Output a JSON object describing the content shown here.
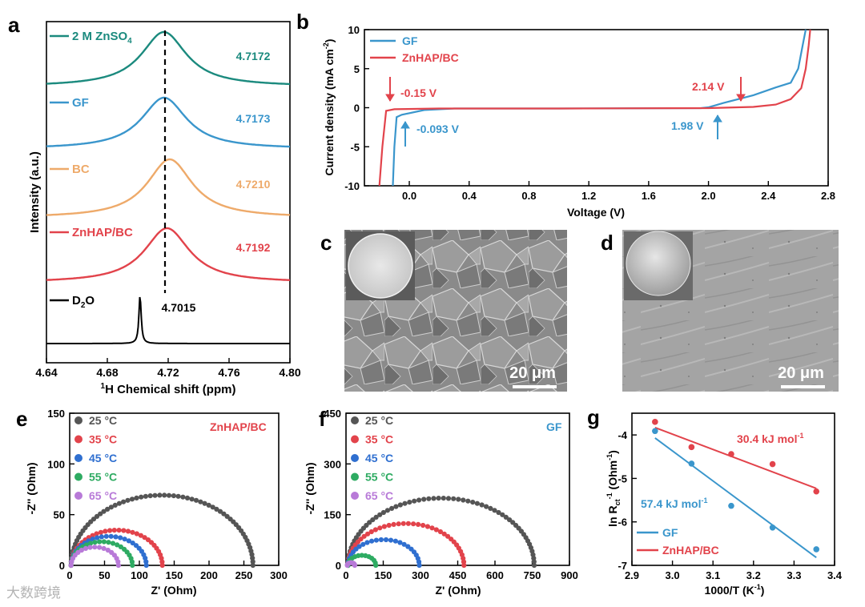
{
  "colors": {
    "black": "#000000",
    "teal": "#1b8a7e",
    "blue": "#3a96cc",
    "orange": "#eeaa6a",
    "red": "#e2434b",
    "gray": "#555555",
    "green": "#2eab62",
    "purple": "#b87ad8",
    "dblue": "#2f6fd0"
  },
  "panels": {
    "a": {
      "letter": "a",
      "ylabel": "Intensity (a.u.)",
      "xlabel_pre": "1",
      "xlabel": "H Chemical shift (ppm)",
      "xticks": [
        "4.64",
        "4.68",
        "4.72",
        "4.76",
        "4.80"
      ],
      "xrange": [
        4.64,
        4.8
      ],
      "peak_labels": [
        "4.7172",
        "4.7173",
        "4.7210",
        "4.7192"
      ],
      "d2o_peak": "4.7015",
      "legend": [
        {
          "label": "2 M ZnSO",
          "sub": "4"
        },
        {
          "label": "GF"
        },
        {
          "label": "BC"
        },
        {
          "label": "ZnHAP/BC"
        },
        {
          "label": "D",
          "sub": "2",
          "tail": "O"
        }
      ],
      "peaks": [
        4.7172,
        4.7173,
        4.721,
        4.7192,
        4.7015
      ]
    },
    "b": {
      "letter": "b",
      "ylabel": "Current density (mA cm",
      "ylabel_sup": "-2",
      "ylabel_end": ")",
      "xlabel": "Voltage (V)",
      "xticks": [
        "0.0",
        "0.4",
        "0.8",
        "1.2",
        "1.6",
        "2.0",
        "2.4",
        "2.8"
      ],
      "yticks": [
        "10",
        "5",
        "0",
        "-5",
        "-10"
      ],
      "xrange": [
        -0.3,
        2.8
      ],
      "yrange": [
        -10,
        10
      ],
      "legend": [
        "GF",
        "ZnHAP/BC"
      ],
      "annotations": {
        "red_low": "-0.15 V",
        "blue_low": "-0.093 V",
        "red_high": "2.14 V",
        "blue_high": "1.98 V"
      }
    },
    "c": {
      "letter": "c",
      "scale": "20 μm"
    },
    "d": {
      "letter": "d",
      "scale": "20 μm"
    },
    "e": {
      "letter": "e",
      "label": "ZnHAP/BC",
      "xlabel": "Z' (Ohm)",
      "ylabel": "-Z'' (Ohm)",
      "xticks": [
        "0",
        "50",
        "100",
        "150",
        "200",
        "250",
        "300"
      ],
      "yticks": [
        "150",
        "100",
        "50",
        "0"
      ],
      "xrange": [
        0,
        300
      ],
      "yrange": [
        0,
        150
      ],
      "legend": [
        "25 °C",
        "35 °C",
        "45 °C",
        "55 °C",
        "65 °C"
      ],
      "arcs": [
        {
          "r0": 2,
          "r1": 263
        },
        {
          "r0": 2,
          "r1": 133
        },
        {
          "r0": 2,
          "r1": 110
        },
        {
          "r0": 2,
          "r1": 90
        },
        {
          "r0": 2,
          "r1": 70
        }
      ]
    },
    "f": {
      "letter": "f",
      "label": "GF",
      "xlabel": "Z' (Ohm)",
      "ylabel": "-Z'' (Ohm)",
      "xticks": [
        "0",
        "150",
        "300",
        "450",
        "600",
        "750",
        "900"
      ],
      "yticks": [
        "450",
        "300",
        "150",
        "0"
      ],
      "xrange": [
        0,
        900
      ],
      "yrange": [
        0,
        450
      ],
      "legend": [
        "25 °C",
        "35 °C",
        "45 °C",
        "55 °C",
        "65 °C"
      ],
      "arcs": [
        {
          "r0": 8,
          "r1": 758
        },
        {
          "r0": 8,
          "r1": 475
        },
        {
          "r0": 8,
          "r1": 295
        },
        {
          "r0": 8,
          "r1": 120
        },
        {
          "r0": 5,
          "r1": 35
        }
      ]
    },
    "g": {
      "letter": "g",
      "xlabel": "1000/T (K",
      "xlabel_sup": "-1",
      "xlabel_end": ")",
      "ylabel_pre": "ln R",
      "ylabel_sub": "ct",
      "ylabel_sup": "-1",
      "ylabel_end": " (Ohm",
      "ylabel_sup2": "-1",
      "ylabel_close": ")",
      "xticks": [
        "2.9",
        "3.0",
        "3.1",
        "3.2",
        "3.3",
        "3.4"
      ],
      "yticks": [
        "-4",
        "-5",
        "-6",
        "-7"
      ],
      "xrange": [
        2.9,
        3.4
      ],
      "yrange": [
        -7,
        -3.5
      ],
      "legend": [
        "GF",
        "ZnHAP/BC"
      ],
      "ea_red": "30.4 kJ mol",
      "ea_blue": "57.4 kJ mol",
      "ea_sup": "-1",
      "red_points": [
        [
          2.957,
          -3.7
        ],
        [
          3.047,
          -4.28
        ],
        [
          3.145,
          -4.44
        ],
        [
          3.247,
          -4.67
        ],
        [
          3.355,
          -5.3
        ]
      ],
      "blue_points": [
        [
          2.957,
          -3.91
        ],
        [
          3.047,
          -4.66
        ],
        [
          3.145,
          -5.63
        ],
        [
          3.247,
          -6.13
        ],
        [
          3.355,
          -6.63
        ]
      ],
      "red_fit": [
        [
          2.957,
          -3.83
        ],
        [
          3.355,
          -5.23
        ]
      ],
      "blue_fit": [
        [
          2.957,
          -4.07
        ],
        [
          3.355,
          -6.82
        ]
      ]
    }
  },
  "watermark": "大数跨境"
}
